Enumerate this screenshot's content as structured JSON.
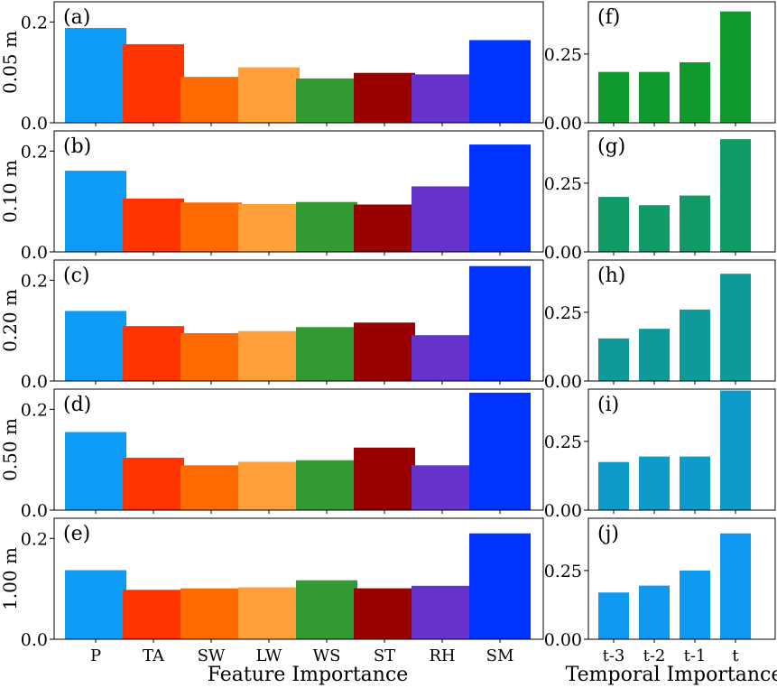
{
  "colors": {
    "features": [
      "#0e9bf5",
      "#ff3300",
      "#ff6a00",
      "#ff9f3a",
      "#339933",
      "#990000",
      "#6633cc",
      "#0033ff"
    ],
    "temporal": [
      "#109a2e",
      "#0f9a66",
      "#0f9a99",
      "#0f9acc",
      "#0f99f0"
    ]
  },
  "xlabels": {
    "features": "Feature Importance",
    "temporal": "Temporal Importance"
  },
  "chart_data": [
    {
      "type": "bar",
      "panel": "(a)",
      "ylabel": "0.05 m",
      "categories": [
        "P",
        "TA",
        "SW",
        "LW",
        "WS",
        "ST",
        "RH",
        "SM"
      ],
      "values": [
        0.188,
        0.156,
        0.091,
        0.11,
        0.088,
        0.099,
        0.096,
        0.164
      ],
      "ylim": [
        0,
        0.24
      ],
      "yticks": [
        "0.0",
        "0.2"
      ],
      "ytick_values": [
        0,
        0.2
      ]
    },
    {
      "type": "bar",
      "panel": "(b)",
      "ylabel": "0.10 m",
      "categories": [
        "P",
        "TA",
        "SW",
        "LW",
        "WS",
        "ST",
        "RH",
        "SM"
      ],
      "values": [
        0.161,
        0.106,
        0.098,
        0.095,
        0.099,
        0.094,
        0.13,
        0.213
      ],
      "ylim": [
        0,
        0.24
      ],
      "yticks": [
        "0.0",
        "0.2"
      ],
      "ytick_values": [
        0,
        0.2
      ]
    },
    {
      "type": "bar",
      "panel": "(c)",
      "ylabel": "0.20 m",
      "categories": [
        "P",
        "TA",
        "SW",
        "LW",
        "WS",
        "ST",
        "RH",
        "SM"
      ],
      "values": [
        0.139,
        0.109,
        0.095,
        0.099,
        0.107,
        0.116,
        0.091,
        0.228
      ],
      "ylim": [
        0,
        0.24
      ],
      "yticks": [
        "0.0",
        "0.2"
      ],
      "ytick_values": [
        0,
        0.2
      ]
    },
    {
      "type": "bar",
      "panel": "(d)",
      "ylabel": "0.50 m",
      "categories": [
        "P",
        "TA",
        "SW",
        "LW",
        "WS",
        "ST",
        "RH",
        "SM"
      ],
      "values": [
        0.155,
        0.104,
        0.089,
        0.096,
        0.099,
        0.124,
        0.089,
        0.233
      ],
      "ylim": [
        0,
        0.24
      ],
      "yticks": [
        "0.0",
        "0.2"
      ],
      "ytick_values": [
        0,
        0.2
      ]
    },
    {
      "type": "bar",
      "panel": "(e)",
      "ylabel": "1.00 m",
      "categories": [
        "P",
        "TA",
        "SW",
        "LW",
        "WS",
        "ST",
        "RH",
        "SM"
      ],
      "values": [
        0.137,
        0.098,
        0.101,
        0.103,
        0.117,
        0.101,
        0.106,
        0.21
      ],
      "ylim": [
        0,
        0.24
      ],
      "yticks": [
        "0.0",
        "0.2"
      ],
      "ytick_values": [
        0,
        0.2
      ]
    },
    {
      "type": "bar",
      "panel": "(f)",
      "categories": [
        "t-3",
        "t-2",
        "t-1",
        "t"
      ],
      "values": [
        0.185,
        0.185,
        0.22,
        0.405
      ],
      "ylim": [
        0,
        0.44
      ],
      "yticks": [
        "0.00",
        "0.25"
      ],
      "ytick_values": [
        0,
        0.25
      ]
    },
    {
      "type": "bar",
      "panel": "(g)",
      "categories": [
        "t-3",
        "t-2",
        "t-1",
        "t"
      ],
      "values": [
        0.2,
        0.17,
        0.205,
        0.41
      ],
      "ylim": [
        0,
        0.44
      ],
      "yticks": [
        "0.00",
        "0.25"
      ],
      "ytick_values": [
        0,
        0.25
      ]
    },
    {
      "type": "bar",
      "panel": "(h)",
      "categories": [
        "t-3",
        "t-2",
        "t-1",
        "t"
      ],
      "values": [
        0.155,
        0.19,
        0.26,
        0.39
      ],
      "ylim": [
        0,
        0.44
      ],
      "yticks": [
        "0.00",
        "0.25"
      ],
      "ytick_values": [
        0,
        0.25
      ]
    },
    {
      "type": "bar",
      "panel": "(i)",
      "categories": [
        "t-3",
        "t-2",
        "t-1",
        "t"
      ],
      "values": [
        0.175,
        0.195,
        0.195,
        0.435
      ],
      "ylim": [
        0,
        0.44
      ],
      "yticks": [
        "0.00",
        "0.25"
      ],
      "ytick_values": [
        0,
        0.25
      ]
    },
    {
      "type": "bar",
      "panel": "(j)",
      "categories": [
        "t-3",
        "t-2",
        "t-1",
        "t"
      ],
      "values": [
        0.17,
        0.195,
        0.25,
        0.385
      ],
      "ylim": [
        0,
        0.44
      ],
      "yticks": [
        "0.00",
        "0.25"
      ],
      "ytick_values": [
        0,
        0.25
      ]
    }
  ]
}
